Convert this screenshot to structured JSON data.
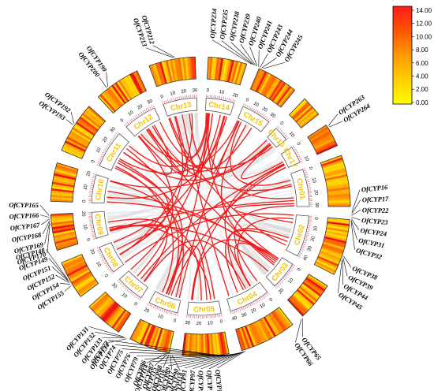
{
  "chromosomes": [
    {
      "label": "Chr01",
      "start": 70,
      "end": 90,
      "ticks": [
        "0",
        "10",
        "20",
        "30"
      ]
    },
    {
      "label": "Chr02",
      "start": 95,
      "end": 117,
      "ticks": [
        "0",
        "10",
        "20",
        "30",
        "40"
      ]
    },
    {
      "label": "Chr03",
      "start": 122,
      "end": 137,
      "ticks": [
        "0",
        "10",
        "20"
      ]
    },
    {
      "label": "Chr04",
      "start": 142,
      "end": 164,
      "ticks": [
        "0",
        "10",
        "20",
        "30",
        "40"
      ]
    },
    {
      "label": "Chr05",
      "start": 169,
      "end": 187,
      "ticks": [
        "0",
        "10",
        "20",
        "30"
      ]
    },
    {
      "label": "Chr06",
      "start": 192,
      "end": 208,
      "ticks": [
        "0",
        "10",
        "20"
      ]
    },
    {
      "label": "Chr07",
      "start": 213,
      "end": 228,
      "ticks": [
        "0",
        "10",
        "20"
      ]
    },
    {
      "label": "Chr08",
      "start": 233,
      "end": 248,
      "ticks": [
        "0",
        "10",
        "20"
      ]
    },
    {
      "label": "Chr09",
      "start": 253,
      "end": 267,
      "ticks": [
        "0",
        "10",
        "20"
      ]
    },
    {
      "label": "Chr10",
      "start": 272,
      "end": 287,
      "ticks": [
        "0",
        "10",
        "20"
      ]
    },
    {
      "label": "Chr11",
      "start": 292,
      "end": 312,
      "ticks": [
        "0",
        "10",
        "20",
        "30"
      ]
    },
    {
      "label": "Chr12",
      "start": 317,
      "end": 335,
      "ticks": [
        "0",
        "10",
        "20",
        "30"
      ]
    },
    {
      "label": "Chr13",
      "start": 340,
      "end": 358,
      "ticks": [
        "0",
        "10",
        "20",
        "30"
      ]
    },
    {
      "label": "Chr14",
      "start": 3,
      "end": 18,
      "ticks": [
        "0",
        "10",
        "20"
      ]
    },
    {
      "label": "Chr15",
      "start": 23,
      "end": 39,
      "ticks": [
        "0",
        "10",
        "20",
        "30"
      ]
    },
    {
      "label": "Chr16",
      "start": 44,
      "end": 52,
      "ticks": [
        "0",
        "10"
      ]
    },
    {
      "label": "Chr17",
      "start": 57,
      "end": 66,
      "ticks": [
        "0",
        "10"
      ]
    }
  ],
  "gene_groups": [
    {
      "genes": [
        "OfCYP213",
        "OfCYP212"
      ]
    },
    {
      "genes": [
        "OfCYP234",
        "OfCYP235",
        "OfCYP238",
        "OfCYP239",
        "OfCYP240",
        "OfCYP241",
        "OfCYP243",
        "OfCYP244",
        "OfCYP245"
      ]
    },
    {
      "genes": [
        "OfCYP200",
        "OfCYP199"
      ]
    },
    {
      "genes": [
        "OfCYP263",
        "OfCYP264"
      ]
    },
    {
      "genes": [
        "OfCYP193",
        "OfCYP192"
      ]
    },
    {
      "genes": [
        "OfCYP170",
        "OfCYP169",
        "OfCYP168",
        "OfCYP167",
        "OfCYP166",
        "OfCYP165"
      ]
    },
    {
      "genes": [
        "OfCYP155",
        "OfCYP154",
        "OfCYP152",
        "OfCYP151",
        "OfCYP149",
        "OfCYP148"
      ]
    },
    {
      "genes": [
        "OfCYP16",
        "OfCYP17",
        "OfCYP22",
        "OfCYP23",
        "OfCYP24",
        "OfCYP31",
        "OfCYP32"
      ]
    },
    {
      "genes": [
        "OfCYP38",
        "OfCYP39",
        "OfCYP44",
        "OfCYP45"
      ]
    },
    {
      "genes": [
        "OfCYP134",
        "OfCYP133",
        "OfCYP132",
        "OfCYP131"
      ]
    },
    {
      "genes": [
        "OfCYP65",
        "OfCYP66"
      ]
    },
    {
      "genes": [
        "OfCYP118",
        "OfCYP117",
        "OfCYP116",
        "OfCYP115",
        "OfCYP114"
      ]
    },
    {
      "genes": [
        "OfCYP111",
        "OfCYP110",
        "OfCYP98",
        "OfCYP97",
        "OfCYP91",
        "OfCYP90",
        "OfCYP89",
        "OfCYP88",
        "OfCYP87",
        "OfCYP86",
        "OfCYP79",
        "OfCYP76",
        "OfCYP75",
        "OfCYP74",
        "OfCYP73"
      ]
    }
  ],
  "legend": {
    "ticks": [
      "14.00",
      "12.00",
      "10.00",
      "8.00",
      "6.00",
      "4.00",
      "2.00",
      "0.00"
    ],
    "colors": [
      "#ffff00",
      "#ffd000",
      "#ff9900",
      "#ff5500",
      "#ff1a1a"
    ]
  },
  "colors": {
    "link": "#ee1c1c",
    "background_link": "#d9d9d9",
    "chr_fill": "#ffffff",
    "chr_stroke": "#555555"
  }
}
